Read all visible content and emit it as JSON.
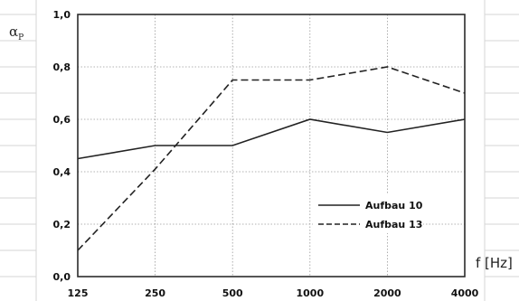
{
  "chart_data": {
    "type": "line",
    "x": [
      "125",
      "250",
      "500",
      "1000",
      "2000",
      "4000"
    ],
    "xlabel": "f [Hz]",
    "ylabel": {
      "main": "α",
      "sub": "P"
    },
    "ylim": [
      0,
      1
    ],
    "yticks": [
      "0,0",
      "0,2",
      "0,4",
      "0,6",
      "0,8",
      "1,0"
    ],
    "ytick_values": [
      0,
      0.2,
      0.4,
      0.6,
      0.8,
      1.0
    ],
    "grid": true,
    "legend_position": "lower-right",
    "series": [
      {
        "name": "Aufbau 10",
        "style": "solid",
        "values": [
          0.45,
          0.5,
          0.5,
          0.6,
          0.55,
          0.6
        ]
      },
      {
        "name": "Aufbau 13",
        "style": "dashed",
        "values": [
          0.1,
          0.41,
          0.75,
          0.75,
          0.8,
          0.7
        ]
      }
    ],
    "colors": {
      "line": "#222222",
      "grid": "#9a9a9a",
      "axis": "#2b2b2b"
    }
  }
}
